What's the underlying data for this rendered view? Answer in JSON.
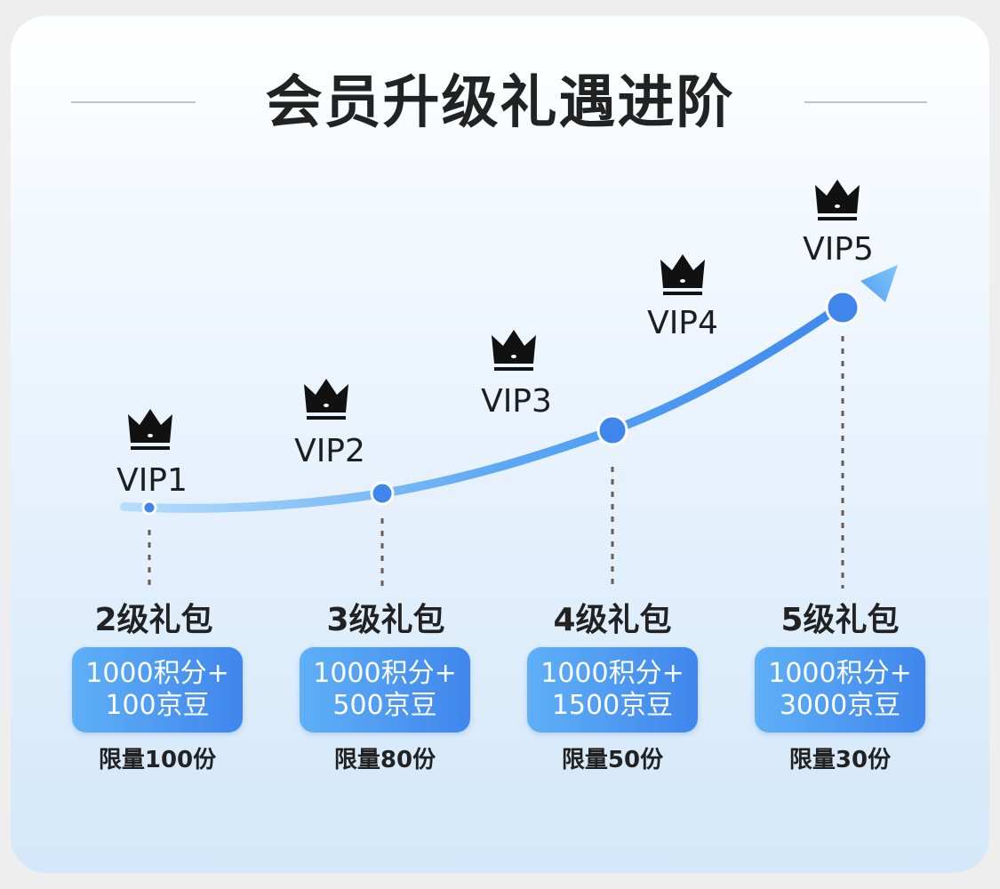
{
  "title": "会员升级礼遇进阶",
  "colors": {
    "accent_start": "#7cc6fb",
    "accent_end": "#3a84ec",
    "dot": "#3f86ec",
    "dashed": "#6b5b4e",
    "text_dark": "#222222"
  },
  "vip_levels": [
    {
      "label": "VIP1",
      "icon": "crown-icon"
    },
    {
      "label": "VIP2",
      "icon": "crown-icon"
    },
    {
      "label": "VIP3",
      "icon": "crown-icon"
    },
    {
      "label": "VIP4",
      "icon": "crown-icon"
    },
    {
      "label": "VIP5",
      "icon": "crown-icon"
    }
  ],
  "packages": [
    {
      "name": "2级礼包",
      "line1": "1000积分+",
      "line2": "100京豆",
      "limit": "限量100份"
    },
    {
      "name": "3级礼包",
      "line1": "1000积分+",
      "line2": "500京豆",
      "limit": "限量80份"
    },
    {
      "name": "4级礼包",
      "line1": "1000积分+",
      "line2": "1500京豆",
      "limit": "限量50份"
    },
    {
      "name": "5级礼包",
      "line1": "1000积分+",
      "line2": "3000京豆",
      "limit": "限量30份"
    }
  ]
}
